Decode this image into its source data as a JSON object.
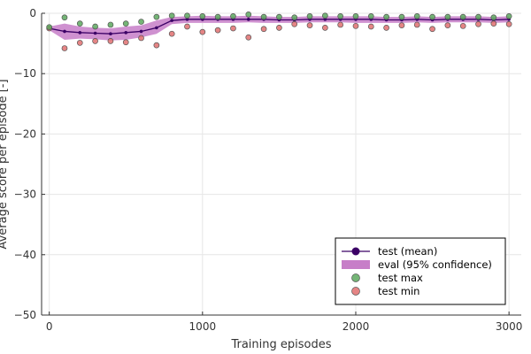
{
  "chart_data": {
    "type": "line",
    "title": "",
    "xlabel": "Training episodes",
    "ylabel": "Average score per episode [-]",
    "xlim": [
      -50,
      3080
    ],
    "ylim": [
      -50,
      0
    ],
    "xticks": [
      0,
      1000,
      2000,
      3000
    ],
    "xtick_labels": [
      "0",
      "1000",
      "2000",
      "3000"
    ],
    "yticks": [
      -50,
      -40,
      -30,
      -20,
      -10,
      0
    ],
    "ytick_labels": [
      "−50",
      "−40",
      "−30",
      "−20",
      "−10",
      "0"
    ],
    "grid": true,
    "legend_position": "bottom-right",
    "x": [
      0,
      100,
      200,
      300,
      400,
      500,
      600,
      700,
      800,
      900,
      1000,
      1100,
      1200,
      1300,
      1400,
      1500,
      1600,
      1700,
      1800,
      1900,
      2000,
      2100,
      2200,
      2300,
      2400,
      2500,
      2600,
      2700,
      2800,
      2900,
      3000
    ],
    "series": [
      {
        "name": "test (mean)",
        "kind": "line",
        "color": "#3b0066",
        "values": [
          -2.5,
          -3.0,
          -3.2,
          -3.3,
          -3.4,
          -3.2,
          -3.0,
          -2.4,
          -1.2,
          -1.0,
          -1.0,
          -1.0,
          -1.0,
          -1.0,
          -1.0,
          -1.1,
          -1.1,
          -1.0,
          -1.0,
          -1.0,
          -1.0,
          -1.0,
          -1.1,
          -1.1,
          -1.0,
          -1.1,
          -1.0,
          -1.0,
          -1.0,
          -1.1,
          -1.0
        ]
      },
      {
        "name": "eval (95% confidence)",
        "kind": "band",
        "color": "#c77ec8",
        "lower": [
          -2.8,
          -4.4,
          -4.2,
          -4.3,
          -4.5,
          -4.4,
          -4.0,
          -3.4,
          -1.8,
          -1.6,
          -1.6,
          -1.6,
          -1.6,
          -1.5,
          -1.6,
          -1.6,
          -1.6,
          -1.5,
          -1.5,
          -1.5,
          -1.6,
          -1.6,
          -1.6,
          -1.6,
          -1.5,
          -1.6,
          -1.5,
          -1.5,
          -1.5,
          -1.6,
          -1.5
        ],
        "upper": [
          -2.2,
          -1.7,
          -2.2,
          -2.4,
          -2.5,
          -2.2,
          -2.0,
          -1.2,
          -0.6,
          -0.5,
          -0.4,
          -0.5,
          -0.5,
          -0.4,
          -0.5,
          -0.6,
          -0.6,
          -0.5,
          -0.5,
          -0.5,
          -0.5,
          -0.5,
          -0.6,
          -0.6,
          -0.5,
          -0.6,
          -0.5,
          -0.5,
          -0.5,
          -0.6,
          -0.5
        ]
      },
      {
        "name": "test max",
        "kind": "scatter",
        "color": "#5ca85e",
        "values": [
          -2.3,
          -0.7,
          -1.7,
          -2.2,
          -1.9,
          -1.7,
          -1.4,
          -0.6,
          -0.4,
          -0.4,
          -0.5,
          -0.6,
          -0.5,
          -0.2,
          -0.6,
          -0.6,
          -0.7,
          -0.5,
          -0.4,
          -0.5,
          -0.5,
          -0.5,
          -0.6,
          -0.6,
          -0.5,
          -0.6,
          -0.6,
          -0.6,
          -0.6,
          -0.7,
          -0.5
        ]
      },
      {
        "name": "test min",
        "kind": "scatter",
        "color": "#e07070",
        "values": [
          -2.5,
          -5.8,
          -4.9,
          -4.6,
          -4.6,
          -4.8,
          -4.1,
          -5.3,
          -3.4,
          -2.2,
          -3.1,
          -2.8,
          -2.5,
          -4.0,
          -2.6,
          -2.4,
          -1.8,
          -2.0,
          -2.4,
          -1.9,
          -2.1,
          -2.2,
          -2.4,
          -2.0,
          -1.9,
          -2.6,
          -2.0,
          -2.1,
          -1.8,
          -1.7,
          -1.8
        ]
      }
    ],
    "colors": {
      "grid": "#e6e6e6",
      "axis": "#333333",
      "legend_border": "#000000"
    }
  }
}
